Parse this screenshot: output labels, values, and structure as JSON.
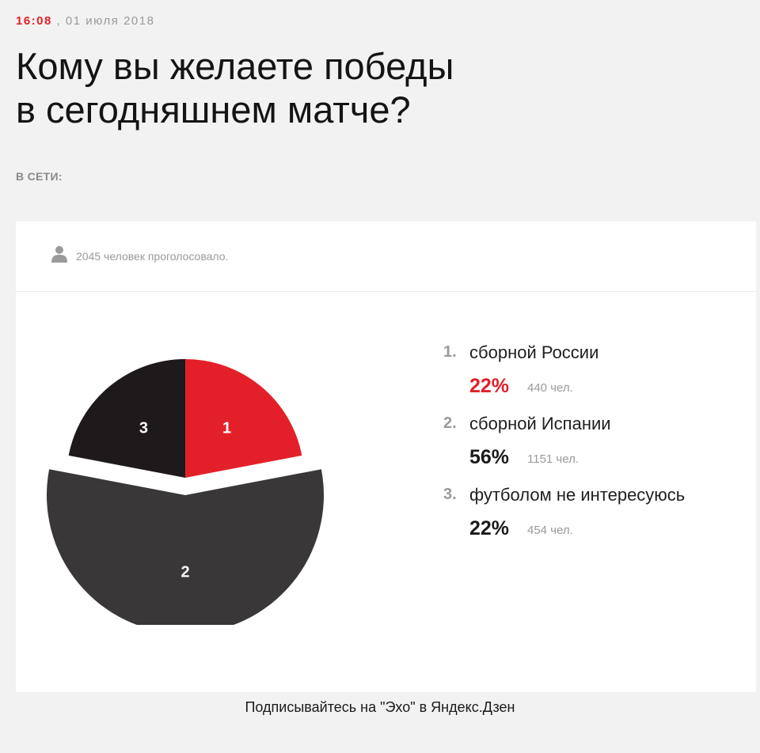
{
  "header": {
    "time": "16:08",
    "separator": ",",
    "date": "01 июля 2018"
  },
  "title_line1": "Кому вы желаете победы",
  "title_line2": "в сегодняшнем матче?",
  "network_label": "В СЕТИ:",
  "poll": {
    "voters_text": "2045 человек проголосовало."
  },
  "footer_text": "Подписывайтесь на \"Эхо\" в Яндекс.Дзен",
  "colors": {
    "red": "#e3202a",
    "dark": "#3a3738",
    "black": "#1e1a1b"
  },
  "icons": {
    "voters": "person-icon"
  },
  "chart_data": {
    "type": "pie",
    "title": "",
    "labels": [
      "1",
      "2",
      "3"
    ],
    "categories": [
      "сборной России",
      "сборной Испании",
      "футболом не интересуюсь"
    ],
    "values": [
      22,
      56,
      22
    ],
    "percent_labels": [
      "22%",
      "56%",
      "22%"
    ],
    "counts": [
      440,
      1151,
      454
    ],
    "count_labels": [
      "440 чел.",
      "1151 чел.",
      "454 чел."
    ],
    "colors": [
      "#e3202a",
      "#3a3738",
      "#1e1a1b"
    ],
    "exploded": [
      "",
      "2",
      ""
    ],
    "legend_position": "right",
    "legend_numbers": [
      "1.",
      "2.",
      "3."
    ]
  }
}
